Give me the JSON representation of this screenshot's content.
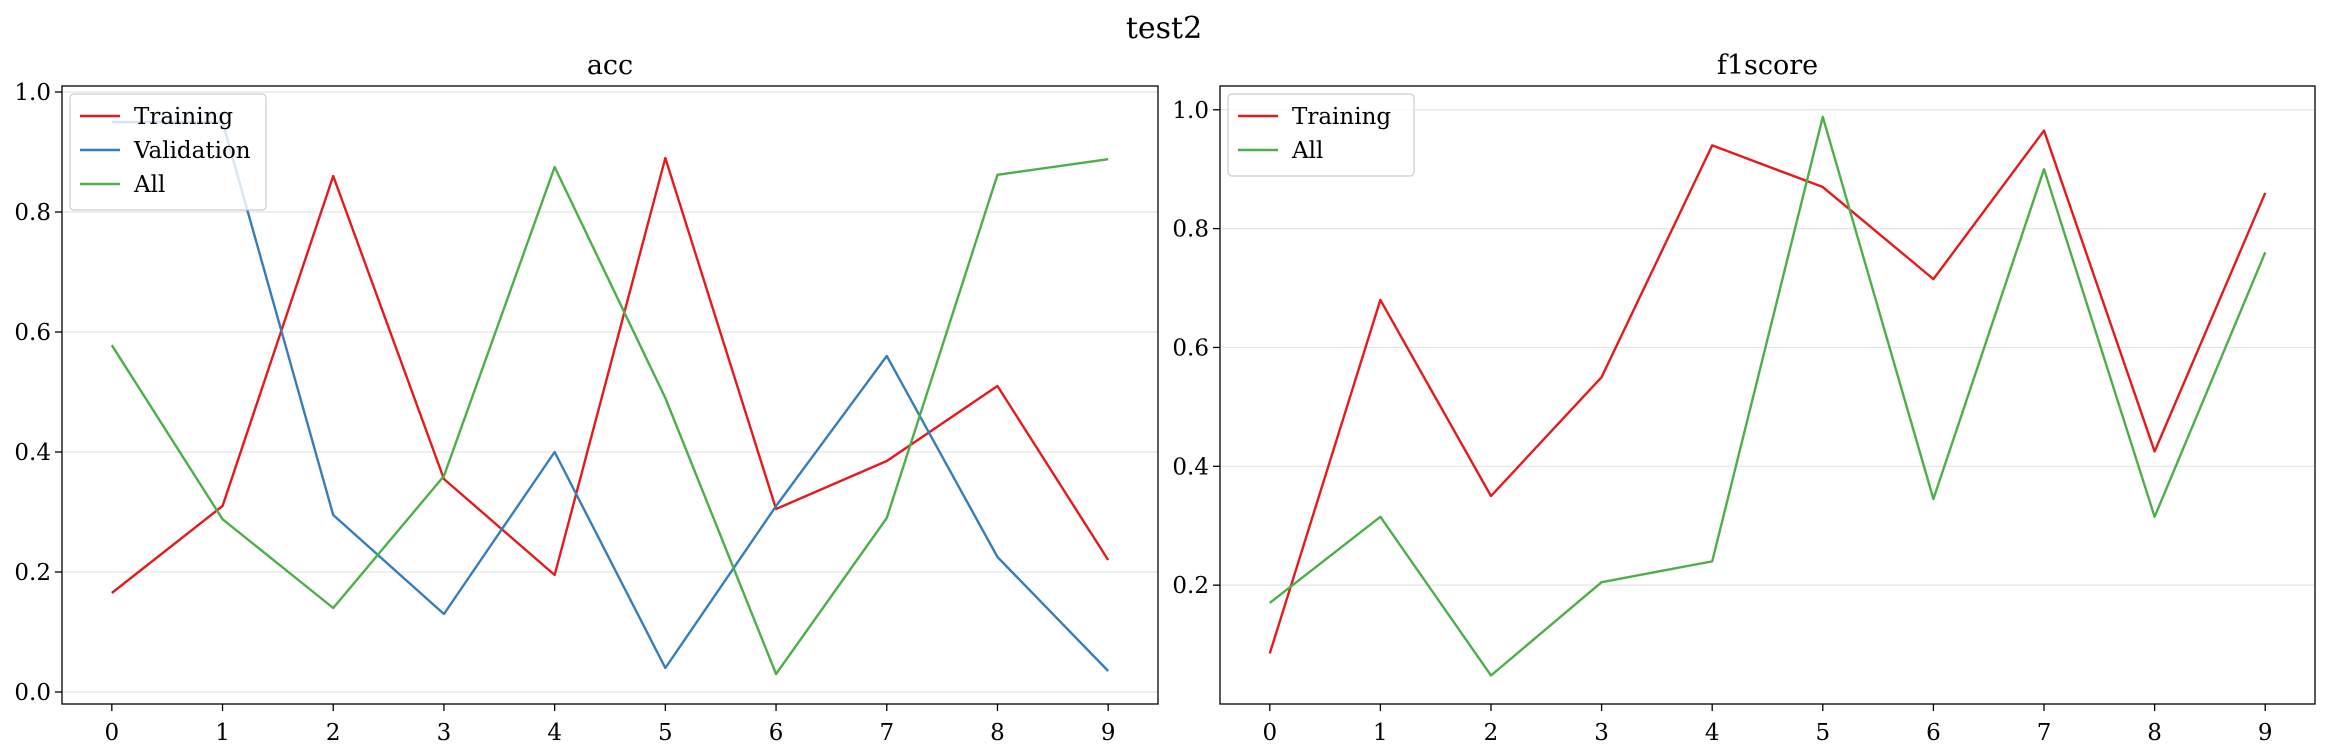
{
  "figure": {
    "title": "test2"
  },
  "chart_data": [
    {
      "type": "line",
      "title": "acc",
      "xlabel": "",
      "ylabel": "",
      "x": [
        0,
        1,
        2,
        3,
        4,
        5,
        6,
        7,
        8,
        9
      ],
      "xlim": [
        -0.45,
        9.45
      ],
      "ylim": [
        -0.02,
        1.01
      ],
      "yticks": [
        0.0,
        0.2,
        0.4,
        0.6,
        0.8,
        1.0
      ],
      "ytick_labels": [
        "0.0",
        "0.2",
        "0.4",
        "0.6",
        "0.8",
        "1.0"
      ],
      "grid": "horizontal",
      "legend": "upper-left",
      "series": [
        {
          "name": "Training",
          "color": "#e41a1c",
          "values": [
            0.165,
            0.31,
            0.86,
            0.355,
            0.195,
            0.89,
            0.305,
            0.385,
            0.51,
            0.22
          ]
        },
        {
          "name": "Validation",
          "color": "#377eb8",
          "values": [
            0.95,
            0.95,
            0.295,
            0.13,
            0.4,
            0.04,
            0.31,
            0.56,
            0.225,
            0.035
          ]
        },
        {
          "name": "All",
          "color": "#4daf4a",
          "values": [
            0.578,
            0.288,
            0.14,
            0.36,
            0.875,
            0.49,
            0.03,
            0.29,
            0.862,
            0.888
          ]
        }
      ]
    },
    {
      "type": "line",
      "title": "f1score",
      "xlabel": "",
      "ylabel": "",
      "x": [
        0,
        1,
        2,
        3,
        4,
        5,
        6,
        7,
        8,
        9
      ],
      "xlim": [
        -0.45,
        9.45
      ],
      "ylim": [
        0.0,
        1.04
      ],
      "yticks": [
        0.2,
        0.4,
        0.6,
        0.8,
        1.0
      ],
      "ytick_labels": [
        "0.2",
        "0.4",
        "0.6",
        "0.8",
        "1.0"
      ],
      "grid": "horizontal",
      "legend": "upper-left",
      "series": [
        {
          "name": "Training",
          "color": "#e41a1c",
          "values": [
            0.085,
            0.68,
            0.35,
            0.55,
            0.94,
            0.87,
            0.715,
            0.965,
            0.425,
            0.86
          ]
        },
        {
          "name": "All",
          "color": "#4daf4a",
          "values": [
            0.17,
            0.315,
            0.048,
            0.205,
            0.24,
            0.988,
            0.345,
            0.9,
            0.315,
            0.76
          ]
        }
      ]
    }
  ]
}
